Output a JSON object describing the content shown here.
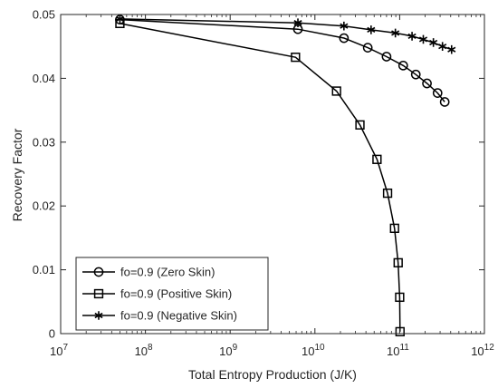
{
  "chart_data": {
    "type": "line",
    "xscale": "log",
    "xlim": [
      10000000.0,
      1000000000000.0
    ],
    "ylim": [
      0,
      0.05
    ],
    "xlabel": "Total Entropy Production (J/K)",
    "ylabel": "Recovery Factor",
    "grid": false,
    "legend_position": "bottom-left",
    "x_ticks": [
      {
        "value": 10000000.0,
        "base": "10",
        "exp": "7"
      },
      {
        "value": 100000000.0,
        "base": "10",
        "exp": "8"
      },
      {
        "value": 1000000000.0,
        "base": "10",
        "exp": "9"
      },
      {
        "value": 10000000000.0,
        "base": "10",
        "exp": "10"
      },
      {
        "value": 100000000000.0,
        "base": "10",
        "exp": "11"
      },
      {
        "value": 1000000000000.0,
        "base": "10",
        "exp": "12"
      }
    ],
    "y_ticks": [
      {
        "value": 0,
        "label": "0"
      },
      {
        "value": 0.01,
        "label": "0.01"
      },
      {
        "value": 0.02,
        "label": "0.02"
      },
      {
        "value": 0.03,
        "label": "0.03"
      },
      {
        "value": 0.04,
        "label": "0.04"
      },
      {
        "value": 0.05,
        "label": "0.05"
      }
    ],
    "series": [
      {
        "name": "fo=0.9 (Zero Skin)",
        "marker": "circle",
        "color": "#000000",
        "points": [
          [
            50000000.0,
            0.0492
          ],
          [
            6300000000.0,
            0.0477
          ],
          [
            22000000000.0,
            0.0463
          ],
          [
            42000000000.0,
            0.0448
          ],
          [
            70000000000.0,
            0.0434
          ],
          [
            110000000000.0,
            0.042
          ],
          [
            155000000000.0,
            0.0406
          ],
          [
            210000000000.0,
            0.0392
          ],
          [
            280000000000.0,
            0.0377
          ],
          [
            340000000000.0,
            0.0363
          ]
        ]
      },
      {
        "name": "fo=0.9 (Positive Skin)",
        "marker": "square",
        "color": "#000000",
        "points": [
          [
            50000000.0,
            0.0486
          ],
          [
            5900000000.0,
            0.0433
          ],
          [
            18000000000.0,
            0.038
          ],
          [
            34000000000.0,
            0.0327
          ],
          [
            54000000000.0,
            0.0273
          ],
          [
            72000000000.0,
            0.022
          ],
          [
            87000000000.0,
            0.0165
          ],
          [
            96000000000.0,
            0.0111
          ],
          [
            100000000000.0,
            0.0057
          ],
          [
            101000000000.0,
            0.0003
          ]
        ]
      },
      {
        "name": "fo=0.9 (Negative Skin)",
        "marker": "asterisk",
        "color": "#000000",
        "points": [
          [
            50000000.0,
            0.0493
          ],
          [
            6300000000.0,
            0.0487
          ],
          [
            22000000000.0,
            0.0482
          ],
          [
            46000000000.0,
            0.0476
          ],
          [
            89000000000.0,
            0.0471
          ],
          [
            140000000000.0,
            0.0466
          ],
          [
            190000000000.0,
            0.0461
          ],
          [
            250000000000.0,
            0.0456
          ],
          [
            320000000000.0,
            0.045
          ],
          [
            410000000000.0,
            0.0445
          ]
        ]
      }
    ]
  }
}
